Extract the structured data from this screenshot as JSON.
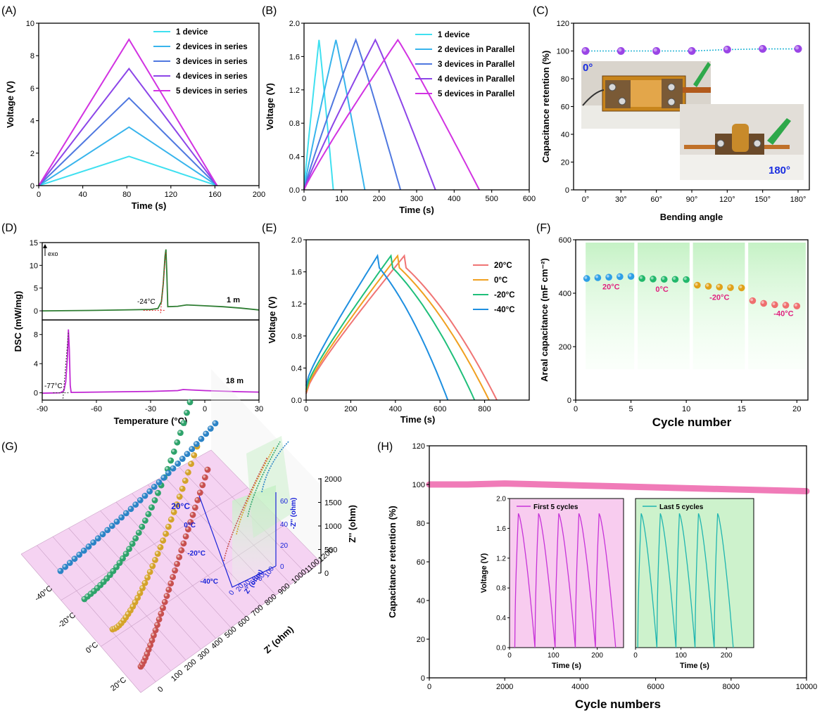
{
  "chart_data": [
    {
      "id": "A",
      "panel_label": "(A)",
      "type": "line",
      "xlabel": "Time (s)",
      "ylabel": "Voltage (V)",
      "xlim": [
        0,
        200
      ],
      "ylim": [
        0,
        10
      ],
      "xticks": [
        "0",
        "40",
        "80",
        "120",
        "160",
        "200"
      ],
      "yticks": [
        "0",
        "2",
        "4",
        "6",
        "8",
        "10"
      ],
      "legend_position": "top-right",
      "series": [
        {
          "name": "1 device",
          "color": "#3fe0f0",
          "x": [
            0,
            82,
            162
          ],
          "y": [
            0,
            1.8,
            0
          ]
        },
        {
          "name": "2 devices in series",
          "color": "#38b4ec",
          "x": [
            0,
            82,
            162
          ],
          "y": [
            0,
            3.6,
            0
          ]
        },
        {
          "name": "3 devices in series",
          "color": "#4f78e0",
          "x": [
            0,
            82,
            162
          ],
          "y": [
            0,
            5.4,
            0
          ]
        },
        {
          "name": "4 devices in series",
          "color": "#8c45e8",
          "x": [
            0,
            82,
            162
          ],
          "y": [
            0,
            7.2,
            0
          ]
        },
        {
          "name": "5 devices in series",
          "color": "#d233e2",
          "x": [
            0,
            82,
            162
          ],
          "y": [
            0,
            9.0,
            0
          ]
        }
      ]
    },
    {
      "id": "B",
      "panel_label": "(B)",
      "type": "line",
      "xlabel": "Time (s)",
      "ylabel": "Voltage (V)",
      "xlim": [
        0,
        600
      ],
      "ylim": [
        0,
        2.0
      ],
      "xticks": [
        "0",
        "100",
        "200",
        "300",
        "400",
        "500",
        "600"
      ],
      "yticks": [
        "0.0",
        "0.4",
        "0.8",
        "1.2",
        "1.6",
        "2.0"
      ],
      "legend_position": "top-right",
      "series": [
        {
          "name": "1 device",
          "color": "#3fe0f0",
          "x": [
            0,
            40,
            78
          ],
          "y": [
            0,
            1.8,
            0
          ]
        },
        {
          "name": "2 devices in Parallel",
          "color": "#38b4ec",
          "x": [
            0,
            85,
            162
          ],
          "y": [
            0,
            1.8,
            0
          ]
        },
        {
          "name": "3 devices in Parallel",
          "color": "#4f78e0",
          "x": [
            0,
            138,
            257
          ],
          "y": [
            0,
            1.8,
            0
          ]
        },
        {
          "name": "4 devices in Parallel",
          "color": "#8c45e8",
          "x": [
            0,
            190,
            350
          ],
          "y": [
            0,
            1.8,
            0
          ]
        },
        {
          "name": "5 devices in Parallel",
          "color": "#d233e2",
          "x": [
            0,
            250,
            467
          ],
          "y": [
            0,
            1.8,
            0
          ]
        }
      ]
    },
    {
      "id": "C",
      "panel_label": "(C)",
      "type": "scatter",
      "xlabel": "Bending angle",
      "ylabel": "Capacitance retention (%)",
      "ylim": [
        0,
        120
      ],
      "categories": [
        "0°",
        "30°",
        "60°",
        "90°",
        "120°",
        "150°",
        "180°"
      ],
      "yticks": [
        "0",
        "20",
        "40",
        "60",
        "80",
        "100",
        "120"
      ],
      "series": [
        {
          "color": "#9a45e6",
          "values": [
            100,
            100,
            100,
            100,
            101,
            101.5,
            101.5
          ]
        }
      ],
      "annotations": [
        "0°",
        "180°"
      ],
      "annotation_color": "#1a2ee0"
    },
    {
      "id": "D",
      "panel_label": "(D)",
      "type": "line",
      "xlabel": "Temperature (°C)",
      "ylabel": "DSC (mW/mg)",
      "xlim": [
        -90,
        30
      ],
      "xticks": [
        "-90",
        "-60",
        "-30",
        "0",
        "30"
      ],
      "top": {
        "ylim": [
          -2,
          15
        ],
        "yticks": [
          "0",
          "5",
          "10",
          "15"
        ],
        "color": "#2e7d32",
        "label": "1 m",
        "marker": "-24°C",
        "exo": "exo",
        "x": [
          -90,
          -60,
          -30,
          -26,
          -24,
          -23,
          -22,
          -21.5,
          -21,
          -20.5,
          -15,
          -10,
          0,
          10,
          20,
          30
        ],
        "y": [
          0,
          0.1,
          0.3,
          0.5,
          2,
          6,
          12,
          13.5,
          8,
          0.9,
          1.0,
          1.3,
          1.1,
          0.9,
          0.6,
          0.2
        ]
      },
      "bottom": {
        "ylim": [
          -1,
          10
        ],
        "yticks": [
          "0",
          "4",
          "8"
        ],
        "color": "#c026d3",
        "label": "18 m",
        "marker": "-77°C",
        "x": [
          -90,
          -80,
          -78,
          -77,
          -76,
          -75.5,
          -75,
          -74.5,
          -74,
          -60,
          -30,
          -15,
          -12,
          0,
          20,
          30
        ],
        "y": [
          -0.05,
          0,
          0.3,
          1.5,
          5,
          8.7,
          6,
          1,
          0.05,
          0.1,
          0.2,
          0.3,
          0.45,
          0.3,
          0.15,
          0.1
        ]
      }
    },
    {
      "id": "E",
      "panel_label": "(E)",
      "type": "line",
      "xlabel": "Time (s)",
      "ylabel": "Voltage (V)",
      "xlim": [
        0,
        1000
      ],
      "ylim": [
        0,
        2.0
      ],
      "xticks": [
        "0",
        "200",
        "400",
        "600",
        "800"
      ],
      "yticks": [
        "0.0",
        "0.4",
        "0.8",
        "1.2",
        "1.6",
        "2.0"
      ],
      "legend_position": "top-right",
      "series": [
        {
          "name": "20°C",
          "color": "#f07474",
          "x": [
            0,
            440,
            855
          ],
          "y": [
            0.08,
            1.8,
            0
          ]
        },
        {
          "name": "0°C",
          "color": "#f0a020",
          "x": [
            0,
            410,
            820
          ],
          "y": [
            0.1,
            1.8,
            0
          ]
        },
        {
          "name": "-20°C",
          "color": "#1fbf7a",
          "x": [
            0,
            380,
            755
          ],
          "y": [
            0.13,
            1.8,
            0
          ]
        },
        {
          "name": "-40°C",
          "color": "#1e8fe0",
          "x": [
            0,
            320,
            635
          ],
          "y": [
            0.18,
            1.8,
            0
          ]
        }
      ]
    },
    {
      "id": "F",
      "panel_label": "(F)",
      "type": "scatter",
      "xlabel": "Cycle number",
      "ylabel": "Areal capacitance (mF cm⁻²)",
      "xlim": [
        0,
        21
      ],
      "ylim": [
        0,
        600
      ],
      "xticks": [
        "0",
        "5",
        "10",
        "15",
        "20"
      ],
      "yticks": [
        "0",
        "200",
        "400",
        "600"
      ],
      "groups": [
        {
          "label": "20°C",
          "color": "#2e9fe6",
          "x": [
            1,
            2,
            3,
            4,
            5
          ],
          "y": [
            455,
            458,
            460,
            462,
            463
          ]
        },
        {
          "label": "0°C",
          "color": "#21b86b",
          "x": [
            6,
            7,
            8,
            9,
            10
          ],
          "y": [
            455,
            453,
            452,
            452,
            451
          ]
        },
        {
          "label": "-20°C",
          "color": "#e0a21a",
          "x": [
            11,
            12,
            13,
            14,
            15
          ],
          "y": [
            430,
            426,
            423,
            421,
            420
          ]
        },
        {
          "label": "-40°C",
          "color": "#ef6e6e",
          "x": [
            16,
            17,
            18,
            19,
            20
          ],
          "y": [
            372,
            362,
            357,
            355,
            352
          ]
        }
      ],
      "label_color": "#e0207f"
    },
    {
      "id": "G",
      "panel_label": "(G)",
      "type": "scatter",
      "xlabel": "Z' (ohm)",
      "zlabel": "Z'' (ohm)",
      "xticks": [
        "0",
        "100",
        "200",
        "300",
        "400",
        "500",
        "600",
        "700",
        "800",
        "900",
        "1000",
        "1100",
        "1200"
      ],
      "zticks": [
        "0",
        "500",
        "1000",
        "1500",
        "2000"
      ],
      "categories": [
        "20°C",
        "0°C",
        "-20°C",
        "-40°C"
      ],
      "colors": [
        "#c8504f",
        "#d4a32a",
        "#2ea36b",
        "#2b83c6"
      ],
      "inset": {
        "xlabel": "Z' (ohm)",
        "ylabel": "-Z'' (ohm)",
        "xticks": [
          "0",
          "20",
          "40",
          "60",
          "80",
          "100"
        ],
        "yticks": [
          "0",
          "20",
          "40",
          "60"
        ],
        "categories": [
          "20°C",
          "0°C",
          "-20°C",
          "-40°C"
        ],
        "color": "#1a24d8"
      }
    },
    {
      "id": "H",
      "panel_label": "(H)",
      "type": "line",
      "xlabel": "Cycle numbers",
      "ylabel": "Capacitance retention (%)",
      "xlim": [
        0,
        10000
      ],
      "ylim": [
        0,
        120
      ],
      "xticks": [
        "0",
        "2000",
        "4000",
        "6000",
        "8000",
        "10000"
      ],
      "yticks": [
        "0",
        "20",
        "40",
        "60",
        "80",
        "100",
        "120"
      ],
      "series": [
        {
          "color": "#f07bb8",
          "x": [
            0,
            1000,
            2000,
            4000,
            6000,
            8000,
            10000
          ],
          "y": [
            100,
            100,
            100.5,
            99.5,
            98.5,
            97.5,
            96.5
          ]
        }
      ],
      "inset_left": {
        "name": "First 5 cycles",
        "color": "#c733d8",
        "xlabel": "Time (s)",
        "ylabel": "Voltage (V)",
        "xticks": [
          "0",
          "100",
          "200"
        ],
        "yticks": [
          "0.0",
          "0.4",
          "0.8",
          "1.2",
          "1.6",
          "2.0"
        ],
        "period": 46,
        "ylim": [
          0,
          2.0
        ],
        "xlim": [
          0,
          260
        ]
      },
      "inset_right": {
        "name": "Last 5 cycles",
        "color": "#1fb5b0",
        "xlabel": "Time (s)",
        "ylabel": "",
        "xticks": [
          "0",
          "100",
          "200"
        ],
        "period": 42,
        "ylim": [
          0,
          2.0
        ],
        "xlim": [
          0,
          260
        ]
      }
    }
  ]
}
